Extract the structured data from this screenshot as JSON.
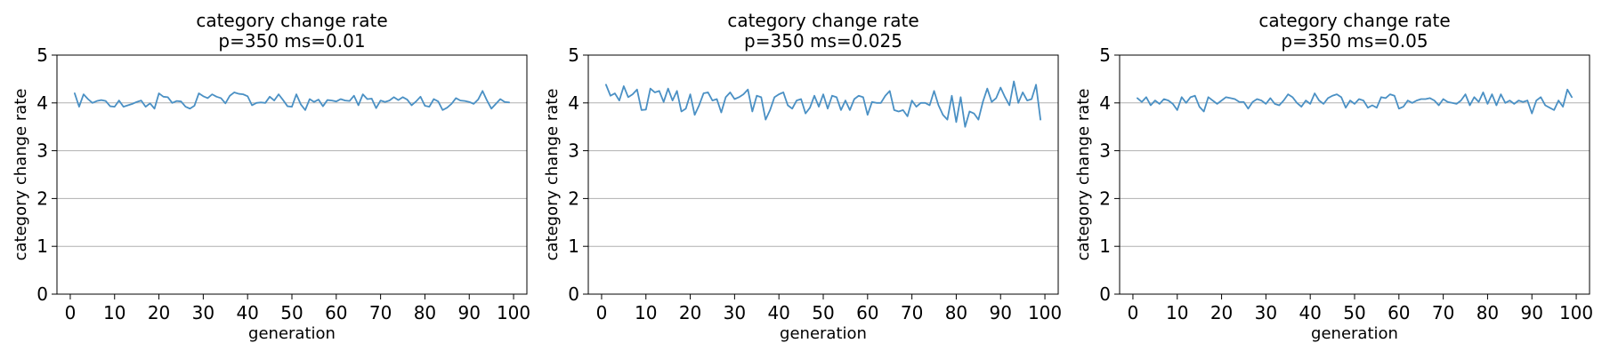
{
  "chart_data": [
    {
      "type": "line",
      "title": "category change rate",
      "subtitle": "p=350 ms=0.01",
      "xlabel": "generation",
      "ylabel": "category change rate",
      "xlim": [
        -3,
        103
      ],
      "ylim": [
        0,
        5
      ],
      "xticks": [
        0,
        10,
        20,
        30,
        40,
        50,
        60,
        70,
        80,
        90,
        100
      ],
      "yticks": [
        0,
        1,
        2,
        3,
        4,
        5
      ],
      "grid": "y-major",
      "color": "#4a90c4",
      "series": [
        {
          "x": [
            1,
            2,
            3,
            4,
            5,
            6,
            7,
            8,
            9,
            10,
            11,
            12,
            13,
            14,
            15,
            16,
            17,
            18,
            19,
            20,
            21,
            22,
            23,
            24,
            25,
            26,
            27,
            28,
            29,
            30,
            31,
            32,
            33,
            34,
            35,
            36,
            37,
            38,
            39,
            40,
            41,
            42,
            43,
            44,
            45,
            46,
            47,
            48,
            49,
            50,
            51,
            52,
            53,
            54,
            55,
            56,
            57,
            58,
            59,
            60,
            61,
            62,
            63,
            64,
            65,
            66,
            67,
            68,
            69,
            70,
            71,
            72,
            73,
            74,
            75,
            76,
            77,
            78,
            79,
            80,
            81,
            82,
            83,
            84,
            85,
            86,
            87,
            88,
            89,
            90,
            91,
            92,
            93,
            94,
            95,
            96,
            97,
            98,
            99
          ],
          "values": [
            4.2,
            3.92,
            4.18,
            4.08,
            4.0,
            4.04,
            4.06,
            4.04,
            3.93,
            3.92,
            4.05,
            3.92,
            3.95,
            3.98,
            4.02,
            4.05,
            3.92,
            3.99,
            3.88,
            4.2,
            4.13,
            4.12,
            4.0,
            4.04,
            4.03,
            3.92,
            3.88,
            3.94,
            4.2,
            4.14,
            4.1,
            4.18,
            4.13,
            4.1,
            3.99,
            4.15,
            4.22,
            4.19,
            4.18,
            4.14,
            3.95,
            4.0,
            4.01,
            4.0,
            4.13,
            4.05,
            4.18,
            4.06,
            3.93,
            3.92,
            4.18,
            3.97,
            3.85,
            4.08,
            4.02,
            4.07,
            3.93,
            4.06,
            4.05,
            4.03,
            4.08,
            4.05,
            4.04,
            4.15,
            3.95,
            4.18,
            4.08,
            4.09,
            3.89,
            4.05,
            4.02,
            4.05,
            4.12,
            4.06,
            4.12,
            4.07,
            3.95,
            4.03,
            4.13,
            3.94,
            3.92,
            4.08,
            4.03,
            3.85,
            3.9,
            3.98,
            4.1,
            4.05,
            4.04,
            4.02,
            3.98,
            4.07,
            4.25,
            4.05,
            3.88,
            3.98,
            4.08,
            4.02,
            4.01
          ]
        }
      ]
    },
    {
      "type": "line",
      "title": "category change rate",
      "subtitle": "p=350 ms=0.025",
      "xlabel": "generation",
      "ylabel": "category change rate",
      "xlim": [
        -3,
        103
      ],
      "ylim": [
        0,
        5
      ],
      "xticks": [
        0,
        10,
        20,
        30,
        40,
        50,
        60,
        70,
        80,
        90,
        100
      ],
      "yticks": [
        0,
        1,
        2,
        3,
        4,
        5
      ],
      "grid": "y-major",
      "color": "#4a90c4",
      "series": [
        {
          "x": [
            1,
            2,
            3,
            4,
            5,
            6,
            7,
            8,
            9,
            10,
            11,
            12,
            13,
            14,
            15,
            16,
            17,
            18,
            19,
            20,
            21,
            22,
            23,
            24,
            25,
            26,
            27,
            28,
            29,
            30,
            31,
            32,
            33,
            34,
            35,
            36,
            37,
            38,
            39,
            40,
            41,
            42,
            43,
            44,
            45,
            46,
            47,
            48,
            49,
            50,
            51,
            52,
            53,
            54,
            55,
            56,
            57,
            58,
            59,
            60,
            61,
            62,
            63,
            64,
            65,
            66,
            67,
            68,
            69,
            70,
            71,
            72,
            73,
            74,
            75,
            76,
            77,
            78,
            79,
            80,
            81,
            82,
            83,
            84,
            85,
            86,
            87,
            88,
            89,
            90,
            91,
            92,
            93,
            94,
            95,
            96,
            97,
            98,
            99
          ],
          "values": [
            4.38,
            4.15,
            4.2,
            4.05,
            4.35,
            4.12,
            4.18,
            4.28,
            3.85,
            3.86,
            4.3,
            4.22,
            4.25,
            4.02,
            4.3,
            4.05,
            4.25,
            3.82,
            3.88,
            4.18,
            3.75,
            3.95,
            4.2,
            4.22,
            4.05,
            4.08,
            3.8,
            4.12,
            4.22,
            4.08,
            4.12,
            4.18,
            4.28,
            3.82,
            4.15,
            4.12,
            3.65,
            3.85,
            4.12,
            4.18,
            4.22,
            3.95,
            3.88,
            4.05,
            4.08,
            3.78,
            3.9,
            4.15,
            3.92,
            4.18,
            3.88,
            4.15,
            4.12,
            3.85,
            4.05,
            3.85,
            4.08,
            4.15,
            4.12,
            3.75,
            4.02,
            4.0,
            4.0,
            4.15,
            4.25,
            3.85,
            3.82,
            3.85,
            3.72,
            4.05,
            3.92,
            4.0,
            4.0,
            3.95,
            4.25,
            3.95,
            3.75,
            3.65,
            4.15,
            3.6,
            4.12,
            3.5,
            3.82,
            3.78,
            3.65,
            4.02,
            4.3,
            4.02,
            4.1,
            4.32,
            4.12,
            3.95,
            4.45,
            4.0,
            4.22,
            4.05,
            4.08,
            4.38,
            3.65
          ]
        }
      ]
    },
    {
      "type": "line",
      "title": "category change rate",
      "subtitle": "p=350 ms=0.05",
      "xlabel": "generation",
      "ylabel": "category change rate",
      "xlim": [
        -3,
        103
      ],
      "ylim": [
        0,
        5
      ],
      "xticks": [
        0,
        10,
        20,
        30,
        40,
        50,
        60,
        70,
        80,
        90,
        100
      ],
      "yticks": [
        0,
        1,
        2,
        3,
        4,
        5
      ],
      "grid": "y-major",
      "color": "#4a90c4",
      "series": [
        {
          "x": [
            1,
            2,
            3,
            4,
            5,
            6,
            7,
            8,
            9,
            10,
            11,
            12,
            13,
            14,
            15,
            16,
            17,
            18,
            19,
            20,
            21,
            22,
            23,
            24,
            25,
            26,
            27,
            28,
            29,
            30,
            31,
            32,
            33,
            34,
            35,
            36,
            37,
            38,
            39,
            40,
            41,
            42,
            43,
            44,
            45,
            46,
            47,
            48,
            49,
            50,
            51,
            52,
            53,
            54,
            55,
            56,
            57,
            58,
            59,
            60,
            61,
            62,
            63,
            64,
            65,
            66,
            67,
            68,
            69,
            70,
            71,
            72,
            73,
            74,
            75,
            76,
            77,
            78,
            79,
            80,
            81,
            82,
            83,
            84,
            85,
            86,
            87,
            88,
            89,
            90,
            91,
            92,
            93,
            94,
            95,
            96,
            97,
            98,
            99
          ],
          "values": [
            4.1,
            4.02,
            4.12,
            3.95,
            4.05,
            3.98,
            4.08,
            4.05,
            3.98,
            3.85,
            4.12,
            4.0,
            4.12,
            4.15,
            3.92,
            3.82,
            4.12,
            4.05,
            3.98,
            4.05,
            4.12,
            4.1,
            4.08,
            4.02,
            4.02,
            3.88,
            4.02,
            4.08,
            4.05,
            3.98,
            4.1,
            3.98,
            3.95,
            4.05,
            4.18,
            4.12,
            4.0,
            3.92,
            4.05,
            3.98,
            4.2,
            4.05,
            3.98,
            4.1,
            4.15,
            4.18,
            4.12,
            3.9,
            4.05,
            3.98,
            4.08,
            4.05,
            3.9,
            3.95,
            3.9,
            4.12,
            4.1,
            4.18,
            4.15,
            3.88,
            3.92,
            4.05,
            4.0,
            4.05,
            4.08,
            4.08,
            4.1,
            4.05,
            3.95,
            4.08,
            4.02,
            4.0,
            3.98,
            4.05,
            4.18,
            3.95,
            4.12,
            4.02,
            4.22,
            3.98,
            4.18,
            3.95,
            4.18,
            4.0,
            4.05,
            3.98,
            4.05,
            4.02,
            4.05,
            3.78,
            4.05,
            4.12,
            3.95,
            3.9,
            3.85,
            4.05,
            3.92,
            4.28,
            4.12
          ]
        }
      ]
    }
  ]
}
